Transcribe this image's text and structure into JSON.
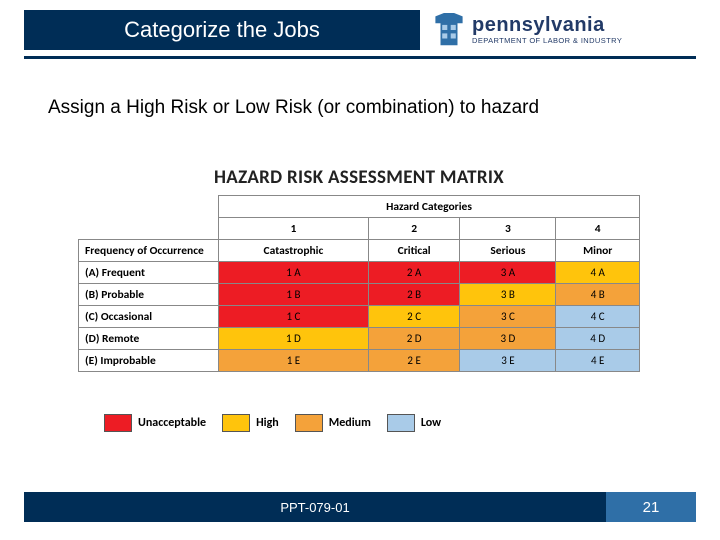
{
  "header": {
    "title": "Categorize the Jobs",
    "brand_big": "pennsylvania",
    "brand_small": "DEPARTMENT OF LABOR & INDUSTRY"
  },
  "subtitle": "Assign a High Risk or Low Risk (or combination) to hazard",
  "matrix": {
    "title": "HAZARD RISK ASSESSMENT MATRIX",
    "hazard_header": "Hazard Categories",
    "row_header": "Frequency of Occurrence",
    "col_nums": [
      "1",
      "2",
      "3",
      "4"
    ],
    "col_names": [
      "Catastrophic",
      "Critical",
      "Serious",
      "Minor"
    ],
    "rows": [
      {
        "label": "(A) Frequent",
        "cells": [
          "1 A",
          "2 A",
          "3 A",
          "4 A"
        ],
        "colors": [
          "#ed1c24",
          "#ed1c24",
          "#ed1c24",
          "#ffc40c"
        ]
      },
      {
        "label": "(B) Probable",
        "cells": [
          "1 B",
          "2 B",
          "3 B",
          "4 B"
        ],
        "colors": [
          "#ed1c24",
          "#ed1c24",
          "#ffc40c",
          "#f4a23a"
        ]
      },
      {
        "label": "(C) Occasional",
        "cells": [
          "1 C",
          "2 C",
          "3 C",
          "4 C"
        ],
        "colors": [
          "#ed1c24",
          "#ffc40c",
          "#f4a23a",
          "#a9cbe8"
        ]
      },
      {
        "label": "(D) Remote",
        "cells": [
          "1 D",
          "2 D",
          "3 D",
          "4 D"
        ],
        "colors": [
          "#ffc40c",
          "#f4a23a",
          "#f4a23a",
          "#a9cbe8"
        ]
      },
      {
        "label": "(E) Improbable",
        "cells": [
          "1 E",
          "2 E",
          "3 E",
          "4 E"
        ],
        "colors": [
          "#f4a23a",
          "#f4a23a",
          "#a9cbe8",
          "#a9cbe8"
        ]
      }
    ]
  },
  "legend": [
    {
      "color": "#ed1c24",
      "label": "Unacceptable"
    },
    {
      "color": "#ffc40c",
      "label": "High"
    },
    {
      "color": "#f4a23a",
      "label": "Medium"
    },
    {
      "color": "#a9cbe8",
      "label": "Low"
    }
  ],
  "footer": {
    "code": "PPT-079-01",
    "page": "21"
  },
  "colors": {
    "dark_blue": "#002d56",
    "mid_blue": "#2f6fa7"
  }
}
